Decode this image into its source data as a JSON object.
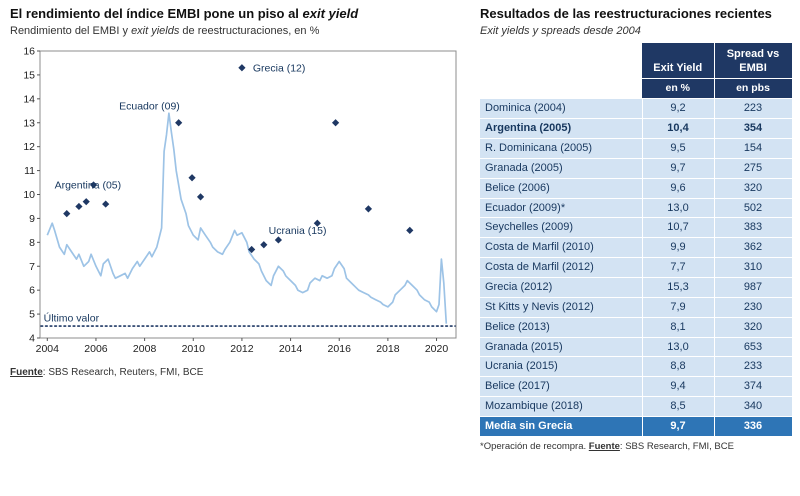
{
  "colors": {
    "navy": "#1f3864",
    "medium_blue": "#2e75b6",
    "row_blue": "#d3e3f3",
    "line_blue": "#9dc3e6"
  },
  "left": {
    "title_pre": "El rendimiento del índice EMBI pone un piso al ",
    "title_italic": "exit yield",
    "subtitle_pre": "Rendimiento del EMBI y ",
    "subtitle_italic": "exit yields",
    "subtitle_post": " de reestructuraciones, en %",
    "source_label": "Fuente",
    "source_rest": ": SBS Research, Reuters, FMI, BCE"
  },
  "chart_data": {
    "type": "line+scatter",
    "title": "Rendimiento del EMBI y exit yields de reestructuraciones, en %",
    "x_range": [
      2003.7,
      2020.8
    ],
    "y_range": [
      4,
      16
    ],
    "x_ticks": [
      2004,
      2006,
      2008,
      2010,
      2012,
      2014,
      2016,
      2018,
      2020
    ],
    "y_ticks": [
      4,
      5,
      6,
      7,
      8,
      9,
      10,
      11,
      12,
      13,
      14,
      15,
      16
    ],
    "grid": false,
    "legend": false,
    "line_series": {
      "name": "Rendimiento del EMBI",
      "color": "#9dc3e6",
      "points": [
        [
          2004.0,
          8.3
        ],
        [
          2004.2,
          8.8
        ],
        [
          2004.3,
          8.5
        ],
        [
          2004.5,
          7.8
        ],
        [
          2004.7,
          7.5
        ],
        [
          2004.8,
          7.9
        ],
        [
          2005.0,
          7.6
        ],
        [
          2005.2,
          7.3
        ],
        [
          2005.3,
          7.5
        ],
        [
          2005.5,
          7.0
        ],
        [
          2005.7,
          7.2
        ],
        [
          2005.8,
          7.5
        ],
        [
          2006.0,
          7.0
        ],
        [
          2006.2,
          6.6
        ],
        [
          2006.3,
          7.1
        ],
        [
          2006.5,
          7.3
        ],
        [
          2006.7,
          6.7
        ],
        [
          2006.8,
          6.5
        ],
        [
          2007.0,
          6.6
        ],
        [
          2007.2,
          6.7
        ],
        [
          2007.3,
          6.5
        ],
        [
          2007.5,
          6.9
        ],
        [
          2007.7,
          7.2
        ],
        [
          2007.8,
          7.0
        ],
        [
          2008.0,
          7.3
        ],
        [
          2008.2,
          7.6
        ],
        [
          2008.3,
          7.4
        ],
        [
          2008.5,
          7.8
        ],
        [
          2008.7,
          8.6
        ],
        [
          2008.8,
          11.8
        ],
        [
          2008.9,
          12.5
        ],
        [
          2009.0,
          13.4
        ],
        [
          2009.1,
          12.6
        ],
        [
          2009.2,
          11.9
        ],
        [
          2009.3,
          11.0
        ],
        [
          2009.5,
          9.8
        ],
        [
          2009.7,
          9.2
        ],
        [
          2009.8,
          8.7
        ],
        [
          2010.0,
          8.3
        ],
        [
          2010.2,
          8.1
        ],
        [
          2010.3,
          8.6
        ],
        [
          2010.5,
          8.3
        ],
        [
          2010.7,
          8.0
        ],
        [
          2010.8,
          7.8
        ],
        [
          2011.0,
          7.6
        ],
        [
          2011.2,
          7.5
        ],
        [
          2011.3,
          7.7
        ],
        [
          2011.5,
          8.0
        ],
        [
          2011.7,
          8.5
        ],
        [
          2011.8,
          8.3
        ],
        [
          2012.0,
          8.4
        ],
        [
          2012.2,
          8.0
        ],
        [
          2012.3,
          7.6
        ],
        [
          2012.5,
          7.3
        ],
        [
          2012.7,
          7.1
        ],
        [
          2012.8,
          6.8
        ],
        [
          2013.0,
          6.4
        ],
        [
          2013.2,
          6.2
        ],
        [
          2013.3,
          6.6
        ],
        [
          2013.5,
          7.0
        ],
        [
          2013.7,
          6.8
        ],
        [
          2013.8,
          6.6
        ],
        [
          2014.0,
          6.4
        ],
        [
          2014.2,
          6.2
        ],
        [
          2014.3,
          6.0
        ],
        [
          2014.5,
          5.9
        ],
        [
          2014.7,
          6.0
        ],
        [
          2014.8,
          6.3
        ],
        [
          2015.0,
          6.5
        ],
        [
          2015.2,
          6.4
        ],
        [
          2015.3,
          6.6
        ],
        [
          2015.5,
          6.5
        ],
        [
          2015.7,
          6.6
        ],
        [
          2015.8,
          6.9
        ],
        [
          2016.0,
          7.2
        ],
        [
          2016.2,
          6.9
        ],
        [
          2016.3,
          6.5
        ],
        [
          2016.5,
          6.3
        ],
        [
          2016.7,
          6.1
        ],
        [
          2016.8,
          6.0
        ],
        [
          2017.0,
          5.9
        ],
        [
          2017.2,
          5.8
        ],
        [
          2017.3,
          5.7
        ],
        [
          2017.5,
          5.6
        ],
        [
          2017.7,
          5.5
        ],
        [
          2017.8,
          5.4
        ],
        [
          2018.0,
          5.3
        ],
        [
          2018.2,
          5.5
        ],
        [
          2018.3,
          5.8
        ],
        [
          2018.5,
          6.0
        ],
        [
          2018.7,
          6.2
        ],
        [
          2018.8,
          6.4
        ],
        [
          2019.0,
          6.2
        ],
        [
          2019.2,
          6.0
        ],
        [
          2019.3,
          5.8
        ],
        [
          2019.5,
          5.6
        ],
        [
          2019.7,
          5.5
        ],
        [
          2019.8,
          5.3
        ],
        [
          2020.0,
          5.1
        ],
        [
          2020.1,
          5.4
        ],
        [
          2020.2,
          7.3
        ],
        [
          2020.3,
          6.3
        ],
        [
          2020.4,
          4.6
        ]
      ]
    },
    "scatter_series": {
      "name": "Exit yields de reestructuraciones",
      "color": "#1f3864",
      "points": [
        {
          "x": 2004.8,
          "y": 9.2,
          "label": "Dominica (2004)"
        },
        {
          "x": 2005.9,
          "y": 10.4,
          "label": "Argentina (2005)"
        },
        {
          "x": 2005.3,
          "y": 9.5,
          "label": "R. Dominicana (2005)"
        },
        {
          "x": 2005.6,
          "y": 9.7,
          "label": "Granada (2005)"
        },
        {
          "x": 2006.4,
          "y": 9.6,
          "label": "Belice (2006)"
        },
        {
          "x": 2009.4,
          "y": 13.0,
          "label": "Ecuador (2009)"
        },
        {
          "x": 2009.95,
          "y": 10.7,
          "label": "Seychelles (2009)"
        },
        {
          "x": 2010.3,
          "y": 9.9,
          "label": "Costa de Marfil (2010)"
        },
        {
          "x": 2012.4,
          "y": 7.7,
          "label": "Costa de Marfil (2012)"
        },
        {
          "x": 2012.0,
          "y": 15.3,
          "label": "Grecia (2012)"
        },
        {
          "x": 2012.9,
          "y": 7.9,
          "label": "St Kitts y Nevis (2012)"
        },
        {
          "x": 2013.5,
          "y": 8.1,
          "label": "Belice (2013)"
        },
        {
          "x": 2015.85,
          "y": 13.0,
          "label": "Granada (2015)"
        },
        {
          "x": 2015.1,
          "y": 8.8,
          "label": "Ucrania (2015)"
        },
        {
          "x": 2017.2,
          "y": 9.4,
          "label": "Belice (2017)"
        },
        {
          "x": 2018.9,
          "y": 8.5,
          "label": "Mozambique (2018)"
        }
      ]
    },
    "last_value_line": {
      "y": 4.5,
      "label": "Último valor"
    },
    "annotations": [
      {
        "text": "Grecia (12)",
        "x": 2012.45,
        "y": 15.15,
        "anchor": "start"
      },
      {
        "text": "Ecuador (09)",
        "x": 2008.2,
        "y": 13.55,
        "anchor": "middle"
      },
      {
        "text": "Argentina (05)",
        "x": 2004.3,
        "y": 10.25,
        "anchor": "start"
      },
      {
        "text": "Ucrania (15)",
        "x": 2013.1,
        "y": 8.35,
        "anchor": "start"
      },
      {
        "text": "Último valor",
        "x": 2003.85,
        "y": 4.68,
        "anchor": "start"
      }
    ]
  },
  "right": {
    "title": "Resultados de las reestructuraciones recientes",
    "subtitle": "Exit yields y spreads desde 2004",
    "table": {
      "columns": [
        {
          "label": "",
          "sub": ""
        },
        {
          "label": "Exit Yield",
          "sub": "en %"
        },
        {
          "label": "Spread vs EMBI",
          "sub": "en pbs"
        }
      ],
      "rows": [
        {
          "label": "Dominica (2004)",
          "exit_yield": "9,2",
          "spread": "223"
        },
        {
          "label": "Argentina (2005)",
          "exit_yield": "10,4",
          "spread": "354",
          "bold": true
        },
        {
          "label": "R. Dominicana (2005)",
          "exit_yield": "9,5",
          "spread": "154"
        },
        {
          "label": "Granada (2005)",
          "exit_yield": "9,7",
          "spread": "275"
        },
        {
          "label": "Belice (2006)",
          "exit_yield": "9,6",
          "spread": "320"
        },
        {
          "label": "Ecuador (2009)*",
          "exit_yield": "13,0",
          "spread": "502"
        },
        {
          "label": "Seychelles (2009)",
          "exit_yield": "10,7",
          "spread": "383"
        },
        {
          "label": "Costa de Marfil (2010)",
          "exit_yield": "9,9",
          "spread": "362"
        },
        {
          "label": "Costa de Marfil (2012)",
          "exit_yield": "7,7",
          "spread": "310"
        },
        {
          "label": "Grecia (2012)",
          "exit_yield": "15,3",
          "spread": "987"
        },
        {
          "label": "St Kitts y Nevis (2012)",
          "exit_yield": "7,9",
          "spread": "230"
        },
        {
          "label": "Belice (2013)",
          "exit_yield": "8,1",
          "spread": "320"
        },
        {
          "label": "Granada (2015)",
          "exit_yield": "13,0",
          "spread": "653"
        },
        {
          "label": "Ucrania (2015)",
          "exit_yield": "8,8",
          "spread": "233"
        },
        {
          "label": "Belice (2017)",
          "exit_yield": "9,4",
          "spread": "374"
        },
        {
          "label": "Mozambique (2018)",
          "exit_yield": "8,5",
          "spread": "340"
        },
        {
          "label": "Media sin Grecia",
          "exit_yield": "9,7",
          "spread": "336",
          "highlight": true
        }
      ]
    },
    "footnote_pre": "*Operación de recompra. ",
    "footnote_fuente": "Fuente",
    "footnote_post": ": SBS Research, FMI, BCE"
  }
}
